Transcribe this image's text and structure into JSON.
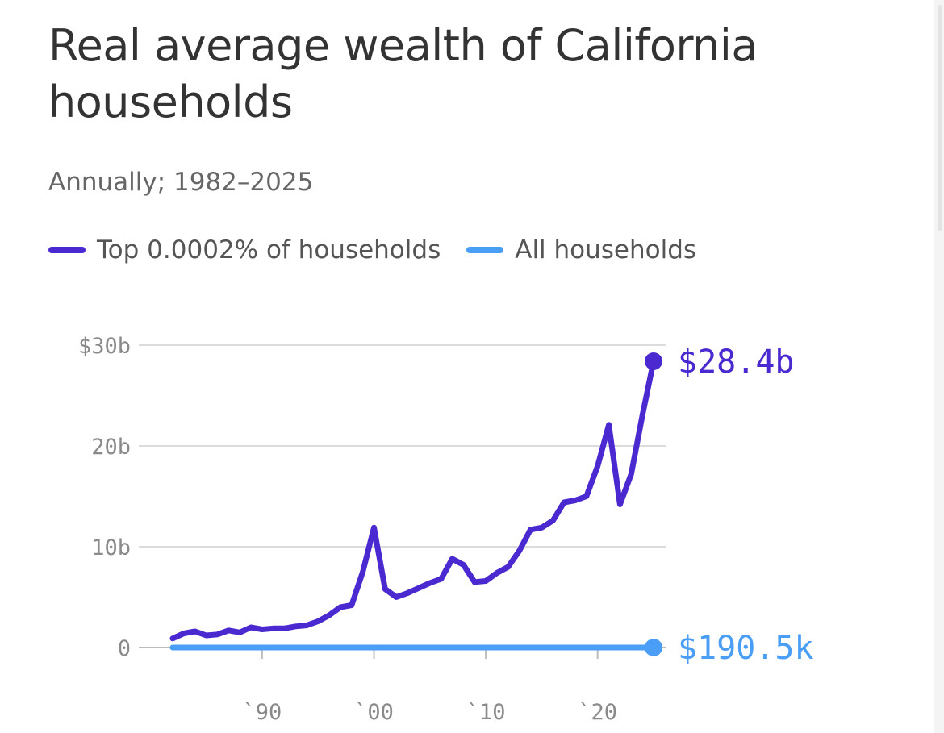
{
  "chart_data": {
    "type": "line",
    "title": "Real average wealth of California households",
    "subtitle": "Annually; 1982–2025",
    "x_ticks": [
      {
        "value": 1990,
        "label": "`90"
      },
      {
        "value": 2000,
        "label": "`00"
      },
      {
        "value": 2010,
        "label": "`10"
      },
      {
        "value": 2020,
        "label": "`20"
      }
    ],
    "y_ticks": [
      {
        "value": 0,
        "label": "0"
      },
      {
        "value": 10,
        "label": "10b"
      },
      {
        "value": 20,
        "label": "20b"
      },
      {
        "value": 30,
        "label": "$30b"
      }
    ],
    "xlim": [
      1982,
      2025
    ],
    "ylim": [
      0,
      30
    ],
    "y_unit": "billions of dollars",
    "grid": "horizontal",
    "legend_position": "top-left",
    "series": [
      {
        "name": "Top 0.0002% of households",
        "color": "#4a2ad0",
        "end_label": "$28.4b",
        "x": [
          1982,
          1983,
          1984,
          1985,
          1986,
          1987,
          1988,
          1989,
          1990,
          1991,
          1992,
          1993,
          1994,
          1995,
          1996,
          1997,
          1998,
          1999,
          2000,
          2001,
          2002,
          2003,
          2004,
          2005,
          2006,
          2007,
          2008,
          2009,
          2010,
          2011,
          2012,
          2013,
          2014,
          2015,
          2016,
          2017,
          2018,
          2019,
          2020,
          2021,
          2022,
          2023,
          2024,
          2025
        ],
        "values": [
          0.9,
          1.4,
          1.6,
          1.2,
          1.3,
          1.7,
          1.5,
          2.0,
          1.8,
          1.9,
          1.9,
          2.1,
          2.2,
          2.6,
          3.2,
          4.0,
          4.2,
          7.5,
          11.9,
          5.8,
          5.0,
          5.4,
          5.9,
          6.4,
          6.8,
          8.8,
          8.2,
          6.5,
          6.6,
          7.4,
          8.0,
          9.6,
          11.7,
          11.9,
          12.6,
          14.4,
          14.6,
          15.0,
          18.0,
          22.1,
          14.2,
          17.2,
          23.0,
          28.4
        ]
      },
      {
        "name": "All households",
        "color": "#4a9ef5",
        "end_label": "$190.5k",
        "x": [
          1982,
          2025
        ],
        "values": [
          0.0001,
          0.00019
        ]
      }
    ]
  }
}
